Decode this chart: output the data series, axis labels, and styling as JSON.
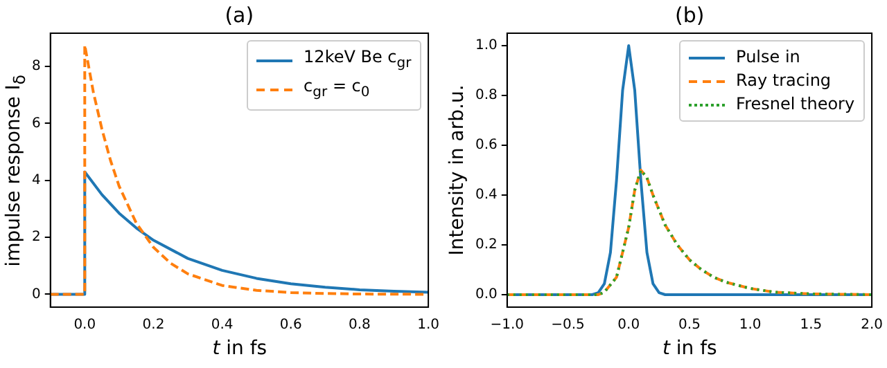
{
  "chart_data": [
    {
      "type": "line",
      "title": "(a)",
      "xlabel": "t in fs",
      "ylabel": "impulse response I$_{δ}$",
      "xlim": [
        -0.1,
        1.0
      ],
      "ylim": [
        -0.45,
        9.17
      ],
      "xticks": [
        {
          "value": 0,
          "label": "0.0"
        },
        {
          "value": 0.2,
          "label": "0.2"
        },
        {
          "value": 0.4,
          "label": "0.4"
        },
        {
          "value": 0.6,
          "label": "0.6"
        },
        {
          "value": 0.8,
          "label": "0.8"
        },
        {
          "value": 1.0,
          "label": "1.0"
        }
      ],
      "yticks": [
        0,
        2,
        4,
        6,
        8
      ],
      "grid": false,
      "legend": "top right",
      "marker": "none",
      "series": [
        {
          "name": "12keV Be c$_{gr}$",
          "color": "#1f77b4",
          "line_style": "solid",
          "x": [
            -0.1,
            0,
            0,
            0.05,
            0.1,
            0.15,
            0.2,
            0.3,
            0.4,
            0.5,
            0.6,
            0.7,
            0.8,
            0.9,
            1.0
          ],
          "values": [
            0,
            0,
            4.3,
            3.5,
            2.85,
            2.33,
            1.9,
            1.26,
            0.84,
            0.56,
            0.37,
            0.25,
            0.16,
            0.11,
            0.07
          ]
        },
        {
          "name": "c$_{gr}$ = c$_{0}$",
          "color": "#ff7f0e",
          "line_style": "dashed",
          "x": [
            -0.1,
            0,
            0,
            0.025,
            0.05,
            0.075,
            0.1,
            0.15,
            0.2,
            0.25,
            0.3,
            0.4,
            0.5,
            0.6,
            0.7,
            0.8,
            1.0
          ],
          "values": [
            0,
            0,
            8.75,
            7.1,
            5.8,
            4.7,
            3.8,
            2.5,
            1.65,
            1.09,
            0.72,
            0.31,
            0.14,
            0.06,
            0.03,
            0.01,
            0
          ]
        }
      ]
    },
    {
      "type": "line",
      "title": "(b)",
      "xlabel": "t in fs",
      "ylabel": "Intensity in arb.u.",
      "xlim": [
        -1.0,
        2.0
      ],
      "ylim": [
        -0.05,
        1.05
      ],
      "xticks": [
        {
          "value": -1,
          "label": "−1.0"
        },
        {
          "value": -0.5,
          "label": "−0.5"
        },
        {
          "value": 0,
          "label": "0.0"
        },
        {
          "value": 0.5,
          "label": "0.5"
        },
        {
          "value": 1,
          "label": "1.0"
        },
        {
          "value": 1.5,
          "label": "1.5"
        },
        {
          "value": 2,
          "label": "2.0"
        }
      ],
      "yticks": [
        {
          "value": 0,
          "label": "0.0"
        },
        {
          "value": 0.2,
          "label": "0.2"
        },
        {
          "value": 0.4,
          "label": "0.4"
        },
        {
          "value": 0.6,
          "label": "0.6"
        },
        {
          "value": 0.8,
          "label": "0.8"
        },
        {
          "value": 1,
          "label": "1.0"
        }
      ],
      "grid": false,
      "legend": "top right",
      "marker": "none",
      "series": [
        {
          "name": "Pulse in",
          "color": "#1f77b4",
          "line_style": "solid",
          "x": [
            -1,
            -0.3,
            -0.25,
            -0.2,
            -0.15,
            -0.1,
            -0.05,
            0,
            0.05,
            0.1,
            0.15,
            0.2,
            0.25,
            0.3,
            2
          ],
          "values": [
            0,
            0,
            0.008,
            0.044,
            0.17,
            0.46,
            0.82,
            1,
            0.82,
            0.46,
            0.17,
            0.044,
            0.008,
            0,
            0
          ]
        },
        {
          "name": "Ray tracing",
          "color": "#ff7f0e",
          "line_style": "dashed",
          "x": [
            -1,
            -0.25,
            -0.2,
            -0.1,
            0,
            0.05,
            0.1,
            0.15,
            0.2,
            0.3,
            0.4,
            0.5,
            0.6,
            0.7,
            0.8,
            1.0,
            1.2,
            1.5,
            2
          ],
          "values": [
            0,
            0,
            0.01,
            0.07,
            0.27,
            0.42,
            0.5,
            0.47,
            0.4,
            0.28,
            0.2,
            0.14,
            0.1,
            0.07,
            0.05,
            0.025,
            0.01,
            0.003,
            0
          ]
        },
        {
          "name": "Fresnel theory",
          "color": "#2ca02c",
          "line_style": "dotted",
          "x": [
            -1,
            -0.25,
            -0.2,
            -0.1,
            0,
            0.05,
            0.1,
            0.15,
            0.2,
            0.3,
            0.4,
            0.5,
            0.6,
            0.7,
            0.8,
            1.0,
            1.2,
            1.5,
            2
          ],
          "values": [
            0,
            0,
            0.01,
            0.07,
            0.27,
            0.42,
            0.5,
            0.47,
            0.4,
            0.28,
            0.2,
            0.14,
            0.1,
            0.07,
            0.05,
            0.025,
            0.01,
            0.003,
            0
          ]
        }
      ]
    }
  ]
}
